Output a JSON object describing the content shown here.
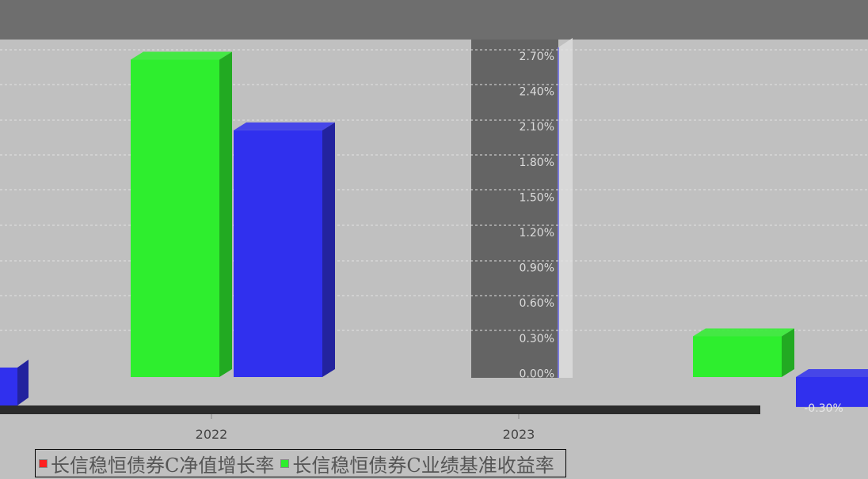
{
  "chart_data": {
    "type": "bar",
    "title": "",
    "categories": [
      "2022",
      "2023"
    ],
    "series": [
      {
        "name": "长信稳恒债券C净值增长率",
        "color": "#ff2020",
        "values": [
          null,
          null
        ]
      },
      {
        "name": "长信稳恒债券C业绩基准收益率",
        "color": "#2eee2e",
        "values": [
          2.65,
          0.34
        ]
      },
      {
        "name": "",
        "color": "#3030ee",
        "values": [
          2.06,
          -0.25
        ]
      }
    ],
    "y_ticks": [
      "2.70%",
      "2.40%",
      "2.10%",
      "1.80%",
      "1.50%",
      "1.20%",
      "0.90%",
      "0.60%",
      "0.30%",
      "0.00%",
      "-0.30%"
    ],
    "ylim": [
      -0.3,
      2.7
    ],
    "grid": true,
    "legend_position": "bottom-left"
  }
}
